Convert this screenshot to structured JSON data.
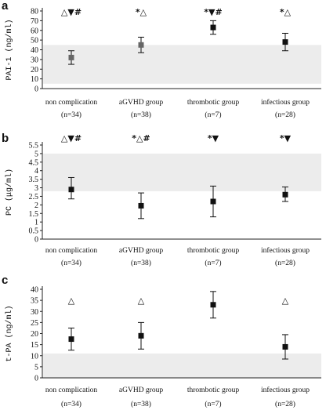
{
  "chart_data": [
    {
      "type": "scatter",
      "panel_label": "a",
      "ylabel": "PAI-1 (ng/ml)",
      "ylim": [
        0,
        80
      ],
      "yticks": [
        0,
        10,
        20,
        30,
        40,
        50,
        60,
        70,
        80
      ],
      "reference_band": [
        5,
        45
      ],
      "categories": [
        {
          "line1": "non complication",
          "line2": "(n=34)"
        },
        {
          "line1": "aGVHD group",
          "line2": "(n=38)"
        },
        {
          "line1": "thrombotic group",
          "line2": "(n=7)"
        },
        {
          "line1": "infectious group",
          "line2": "(n=28)"
        }
      ],
      "points": [
        {
          "mean": 32,
          "low": 25,
          "high": 39,
          "marker_color": "#666666"
        },
        {
          "mean": 45,
          "low": 37,
          "high": 53,
          "marker_color": "#666666"
        },
        {
          "mean": 63,
          "low": 56,
          "high": 70,
          "marker_color": "#111111"
        },
        {
          "mean": 48,
          "low": 39,
          "high": 57,
          "marker_color": "#111111"
        }
      ],
      "annotations": [
        "△▼#",
        "*△",
        "*▼#",
        "*△"
      ]
    },
    {
      "type": "scatter",
      "panel_label": "b",
      "ylabel": "PC (μg/ml)",
      "ylim": [
        0,
        5.5
      ],
      "yticks": [
        "0",
        "0.5",
        "1",
        "1.5",
        "2",
        "2.5",
        "3",
        "3.5",
        "4",
        "4.5",
        "5",
        "5.5"
      ],
      "reference_band": [
        2.8,
        5
      ],
      "categories": [
        {
          "line1": "non complication",
          "line2": "(n=34)"
        },
        {
          "line1": "aGVHD group",
          "line2": "(n=38)"
        },
        {
          "line1": "thrombotic group",
          "line2": "(n=7)"
        },
        {
          "line1": "infectious group",
          "line2": "(n=28)"
        }
      ],
      "points": [
        {
          "mean": 2.9,
          "low": 2.35,
          "high": 3.6,
          "marker_color": "#111111"
        },
        {
          "mean": 1.95,
          "low": 1.2,
          "high": 2.7,
          "marker_color": "#111111"
        },
        {
          "mean": 2.2,
          "low": 1.3,
          "high": 3.1,
          "marker_color": "#111111"
        },
        {
          "mean": 2.6,
          "low": 2.2,
          "high": 3.05,
          "marker_color": "#111111"
        }
      ],
      "annotations": [
        "△▼#",
        "*△#",
        "*▼",
        "*▼"
      ]
    },
    {
      "type": "scatter",
      "panel_label": "c",
      "ylabel": "t-PA (ng/ml)",
      "ylim": [
        0,
        40
      ],
      "yticks": [
        0,
        5,
        10,
        15,
        20,
        25,
        30,
        35,
        40
      ],
      "reference_band": [
        0,
        11
      ],
      "categories": [
        {
          "line1": "non complication",
          "line2": "(n=34)"
        },
        {
          "line1": "aGVHD group",
          "line2": "(n=38)"
        },
        {
          "line1": "thrombotic group",
          "line2": "(n=7)"
        },
        {
          "line1": "infectious group",
          "line2": "(n=28)"
        }
      ],
      "points": [
        {
          "mean": 17.5,
          "low": 12.5,
          "high": 22.5,
          "marker_color": "#111111"
        },
        {
          "mean": 19,
          "low": 13,
          "high": 25,
          "marker_color": "#111111"
        },
        {
          "mean": 33,
          "low": 27,
          "high": 39,
          "marker_color": "#111111"
        },
        {
          "mean": 14,
          "low": 8.5,
          "high": 19.5,
          "marker_color": "#111111"
        }
      ],
      "annotations": [
        "△",
        "△",
        "",
        "△"
      ]
    }
  ]
}
